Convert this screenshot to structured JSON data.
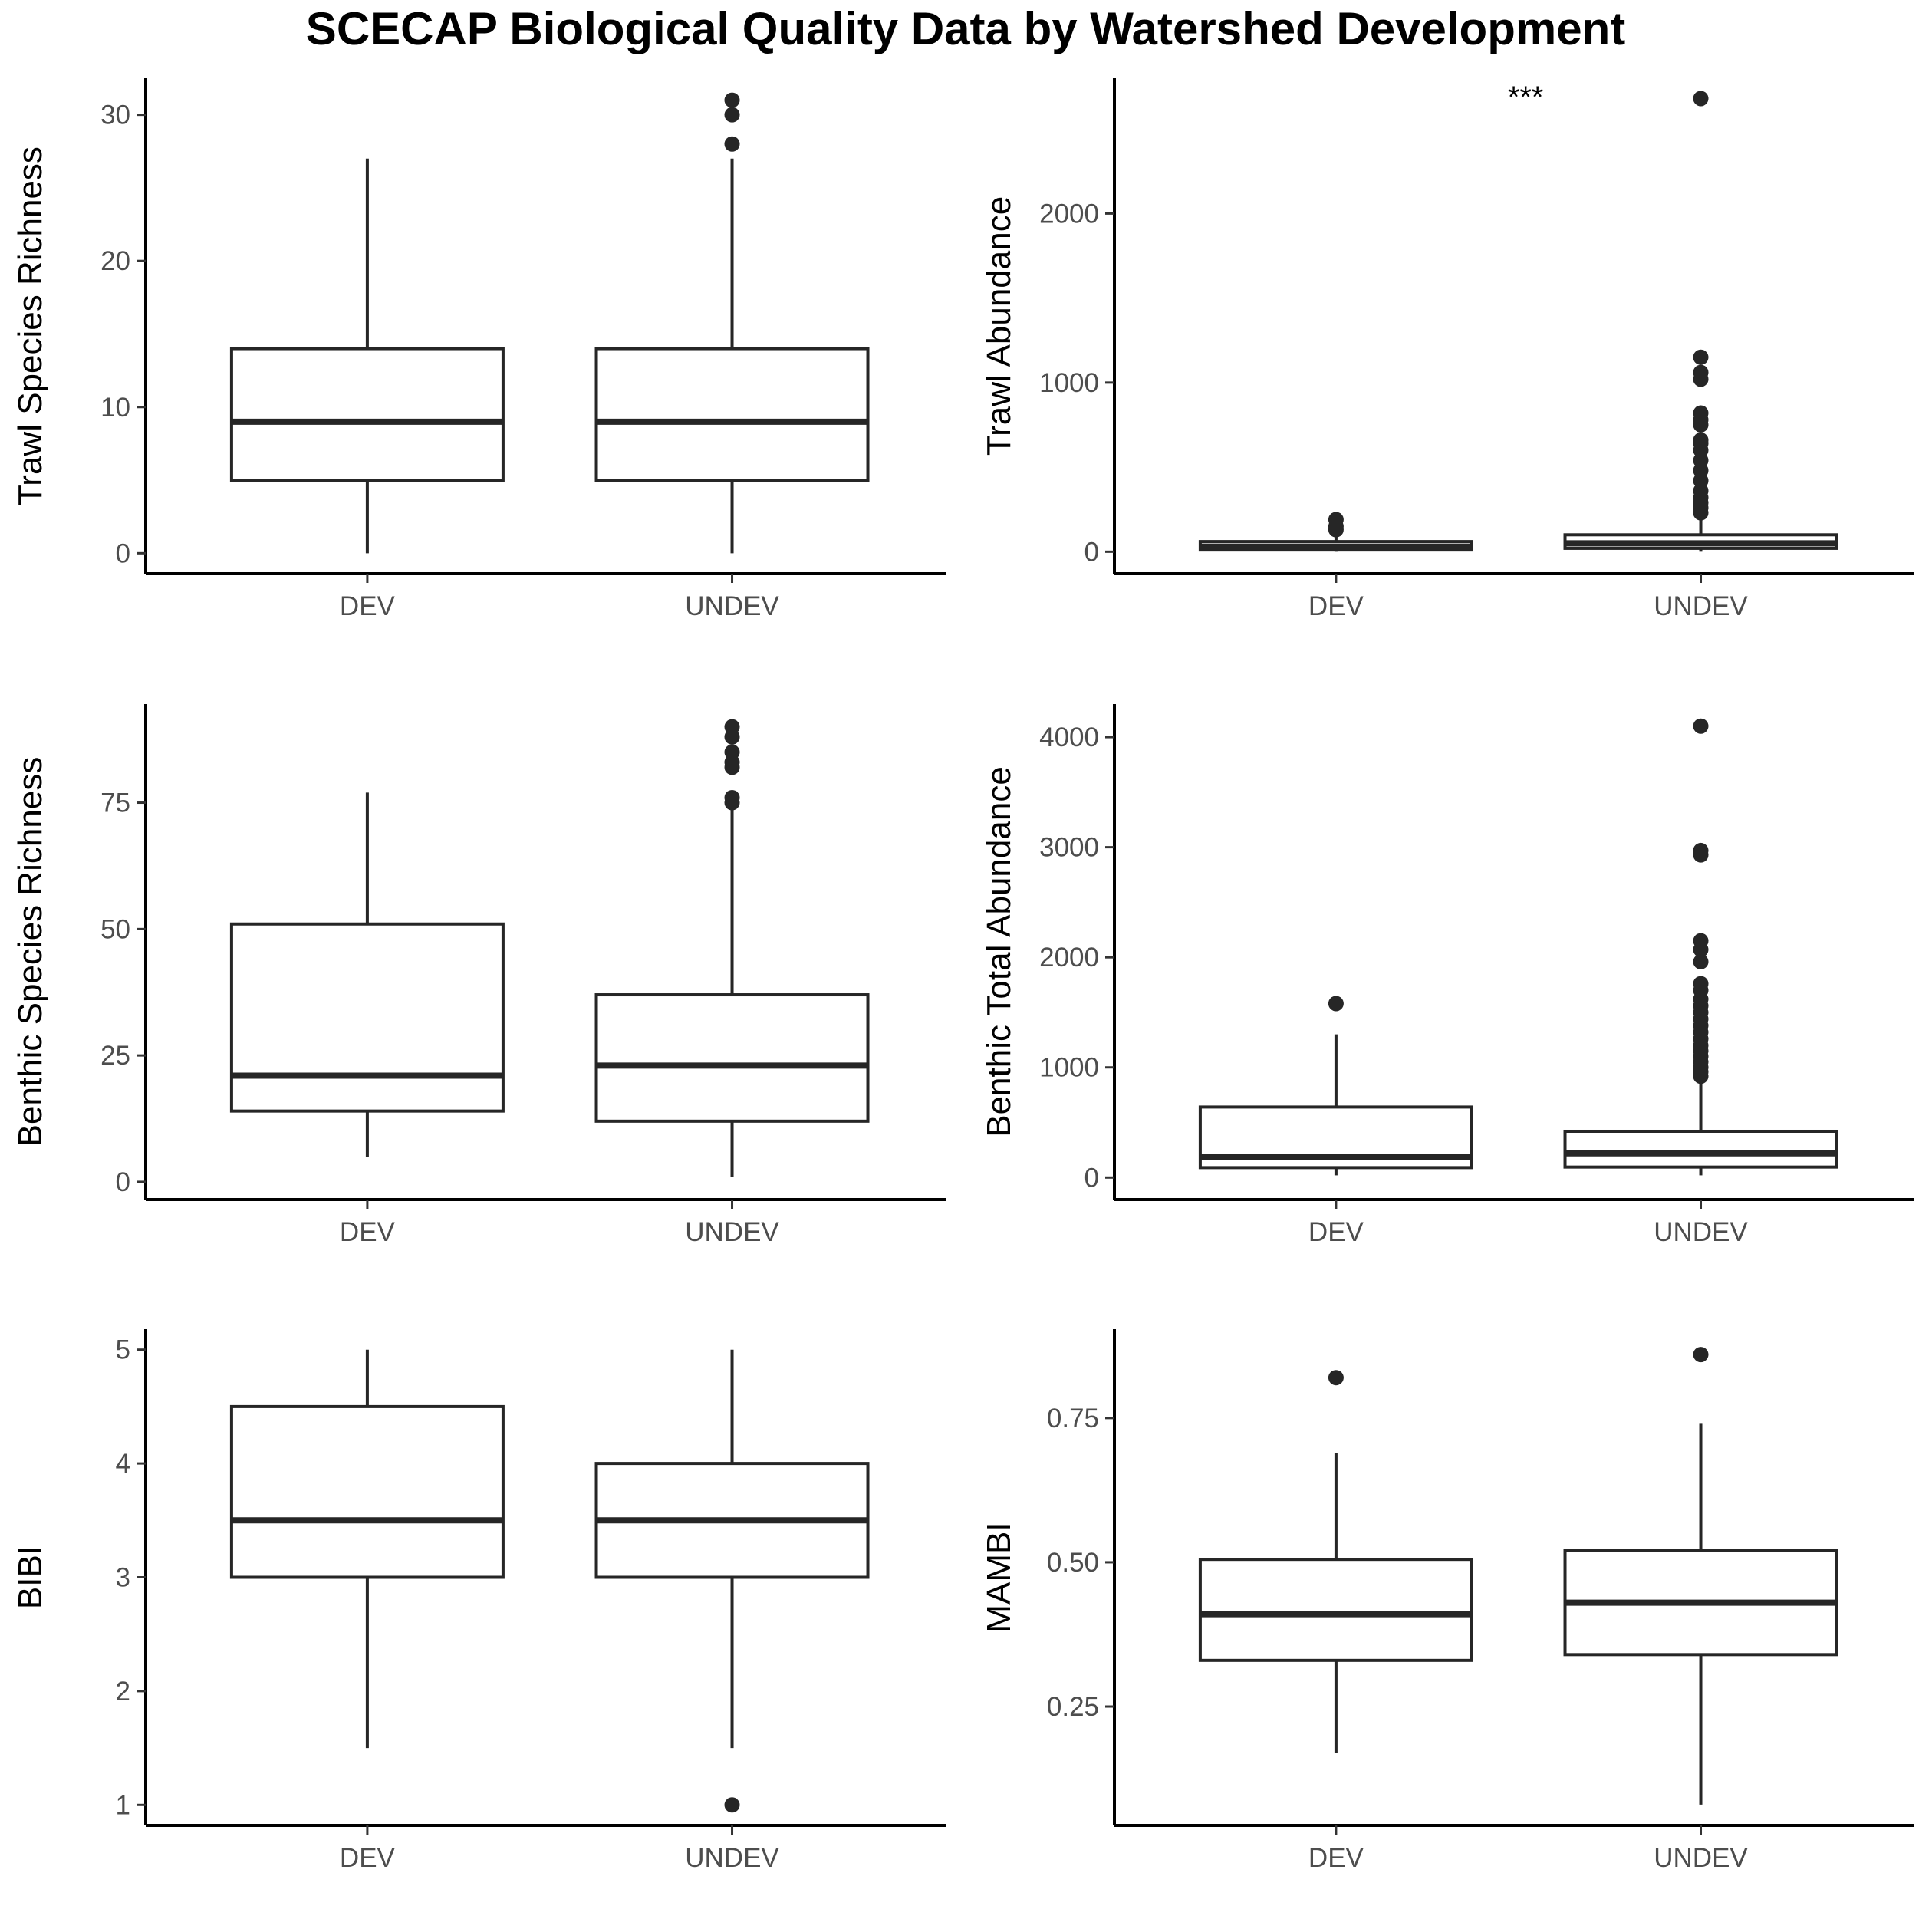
{
  "title": "SCECAP Biological Quality Data by Watershed Development",
  "chart_data": [
    {
      "type": "boxplot",
      "ylabel": "Trawl Species Richness",
      "categories": [
        "DEV",
        "UNDEV"
      ],
      "ylim": [
        -1.4,
        32.5
      ],
      "yticks": [
        0,
        10,
        20,
        30
      ],
      "ytick_labels": [
        "0",
        "10",
        "20",
        "30"
      ],
      "annotation": "",
      "boxes": [
        {
          "category": "DEV",
          "whisker_low": 0,
          "q1": 5,
          "median": 9,
          "q3": 14,
          "whisker_high": 27,
          "outliers": []
        },
        {
          "category": "UNDEV",
          "whisker_low": 0,
          "q1": 5,
          "median": 9,
          "q3": 14,
          "whisker_high": 27,
          "outliers": [
            28,
            30,
            31
          ]
        }
      ]
    },
    {
      "type": "boxplot",
      "ylabel": "Trawl Abundance",
      "categories": [
        "DEV",
        "UNDEV"
      ],
      "ylim": [
        -130,
        2800
      ],
      "yticks": [
        0,
        1000,
        2000
      ],
      "ytick_labels": [
        "0",
        "1000",
        "2000"
      ],
      "annotation": "***",
      "boxes": [
        {
          "category": "DEV",
          "whisker_low": 0,
          "q1": 10,
          "median": 30,
          "q3": 60,
          "whisker_high": 110,
          "outliers": [
            130,
            150,
            190
          ]
        },
        {
          "category": "UNDEV",
          "whisker_low": 0,
          "q1": 20,
          "median": 50,
          "q3": 100,
          "whisker_high": 200,
          "outliers": [
            230,
            260,
            290,
            320,
            360,
            420,
            480,
            540,
            600,
            640,
            660,
            750,
            780,
            820,
            1020,
            1060,
            1150,
            2680
          ]
        }
      ]
    },
    {
      "type": "boxplot",
      "ylabel": "Benthic Species Richness",
      "categories": [
        "DEV",
        "UNDEV"
      ],
      "ylim": [
        -3.5,
        94.5
      ],
      "yticks": [
        0,
        25,
        50,
        75
      ],
      "ytick_labels": [
        "0",
        "25",
        "50",
        "75"
      ],
      "annotation": "",
      "boxes": [
        {
          "category": "DEV",
          "whisker_low": 5,
          "q1": 14,
          "median": 21,
          "q3": 51,
          "whisker_high": 77,
          "outliers": []
        },
        {
          "category": "UNDEV",
          "whisker_low": 1,
          "q1": 12,
          "median": 23,
          "q3": 37,
          "whisker_high": 74,
          "outliers": [
            75,
            76,
            82,
            83,
            85,
            88,
            90
          ]
        }
      ]
    },
    {
      "type": "boxplot",
      "ylabel": "Benthic Total Abundance",
      "categories": [
        "DEV",
        "UNDEV"
      ],
      "ylim": [
        -200,
        4300
      ],
      "yticks": [
        0,
        1000,
        2000,
        3000,
        4000
      ],
      "ytick_labels": [
        "0",
        "1000",
        "2000",
        "3000",
        "4000"
      ],
      "annotation": "",
      "boxes": [
        {
          "category": "DEV",
          "whisker_low": 20,
          "q1": 90,
          "median": 185,
          "q3": 640,
          "whisker_high": 1300,
          "outliers": [
            1580
          ]
        },
        {
          "category": "UNDEV",
          "whisker_low": 20,
          "q1": 95,
          "median": 220,
          "q3": 420,
          "whisker_high": 880,
          "outliers": [
            920,
            960,
            1000,
            1050,
            1100,
            1150,
            1200,
            1260,
            1320,
            1380,
            1440,
            1500,
            1560,
            1620,
            1700,
            1760,
            1960,
            2070,
            2150,
            2930,
            2970,
            4100
          ]
        }
      ]
    },
    {
      "type": "boxplot",
      "ylabel": "BIBI",
      "categories": [
        "DEV",
        "UNDEV"
      ],
      "ylim": [
        0.82,
        5.18
      ],
      "yticks": [
        1,
        2,
        3,
        4,
        5
      ],
      "ytick_labels": [
        "1",
        "2",
        "3",
        "4",
        "5"
      ],
      "annotation": "",
      "boxes": [
        {
          "category": "DEV",
          "whisker_low": 1.5,
          "q1": 3.0,
          "median": 3.5,
          "q3": 4.5,
          "whisker_high": 5.0,
          "outliers": []
        },
        {
          "category": "UNDEV",
          "whisker_low": 1.5,
          "q1": 3.0,
          "median": 3.5,
          "q3": 4.0,
          "whisker_high": 5.0,
          "outliers": [
            1.0
          ]
        }
      ]
    },
    {
      "type": "boxplot",
      "ylabel": "MAMBI",
      "categories": [
        "DEV",
        "UNDEV"
      ],
      "ylim": [
        0.044,
        0.904
      ],
      "yticks": [
        0.25,
        0.5,
        0.75
      ],
      "ytick_labels": [
        "0.25",
        "0.50",
        "0.75"
      ],
      "annotation": "",
      "boxes": [
        {
          "category": "DEV",
          "whisker_low": 0.17,
          "q1": 0.33,
          "median": 0.41,
          "q3": 0.505,
          "whisker_high": 0.69,
          "outliers": [
            0.82
          ]
        },
        {
          "category": "UNDEV",
          "whisker_low": 0.08,
          "q1": 0.34,
          "median": 0.43,
          "q3": 0.52,
          "whisker_high": 0.74,
          "outliers": [
            0.86
          ]
        }
      ]
    }
  ]
}
